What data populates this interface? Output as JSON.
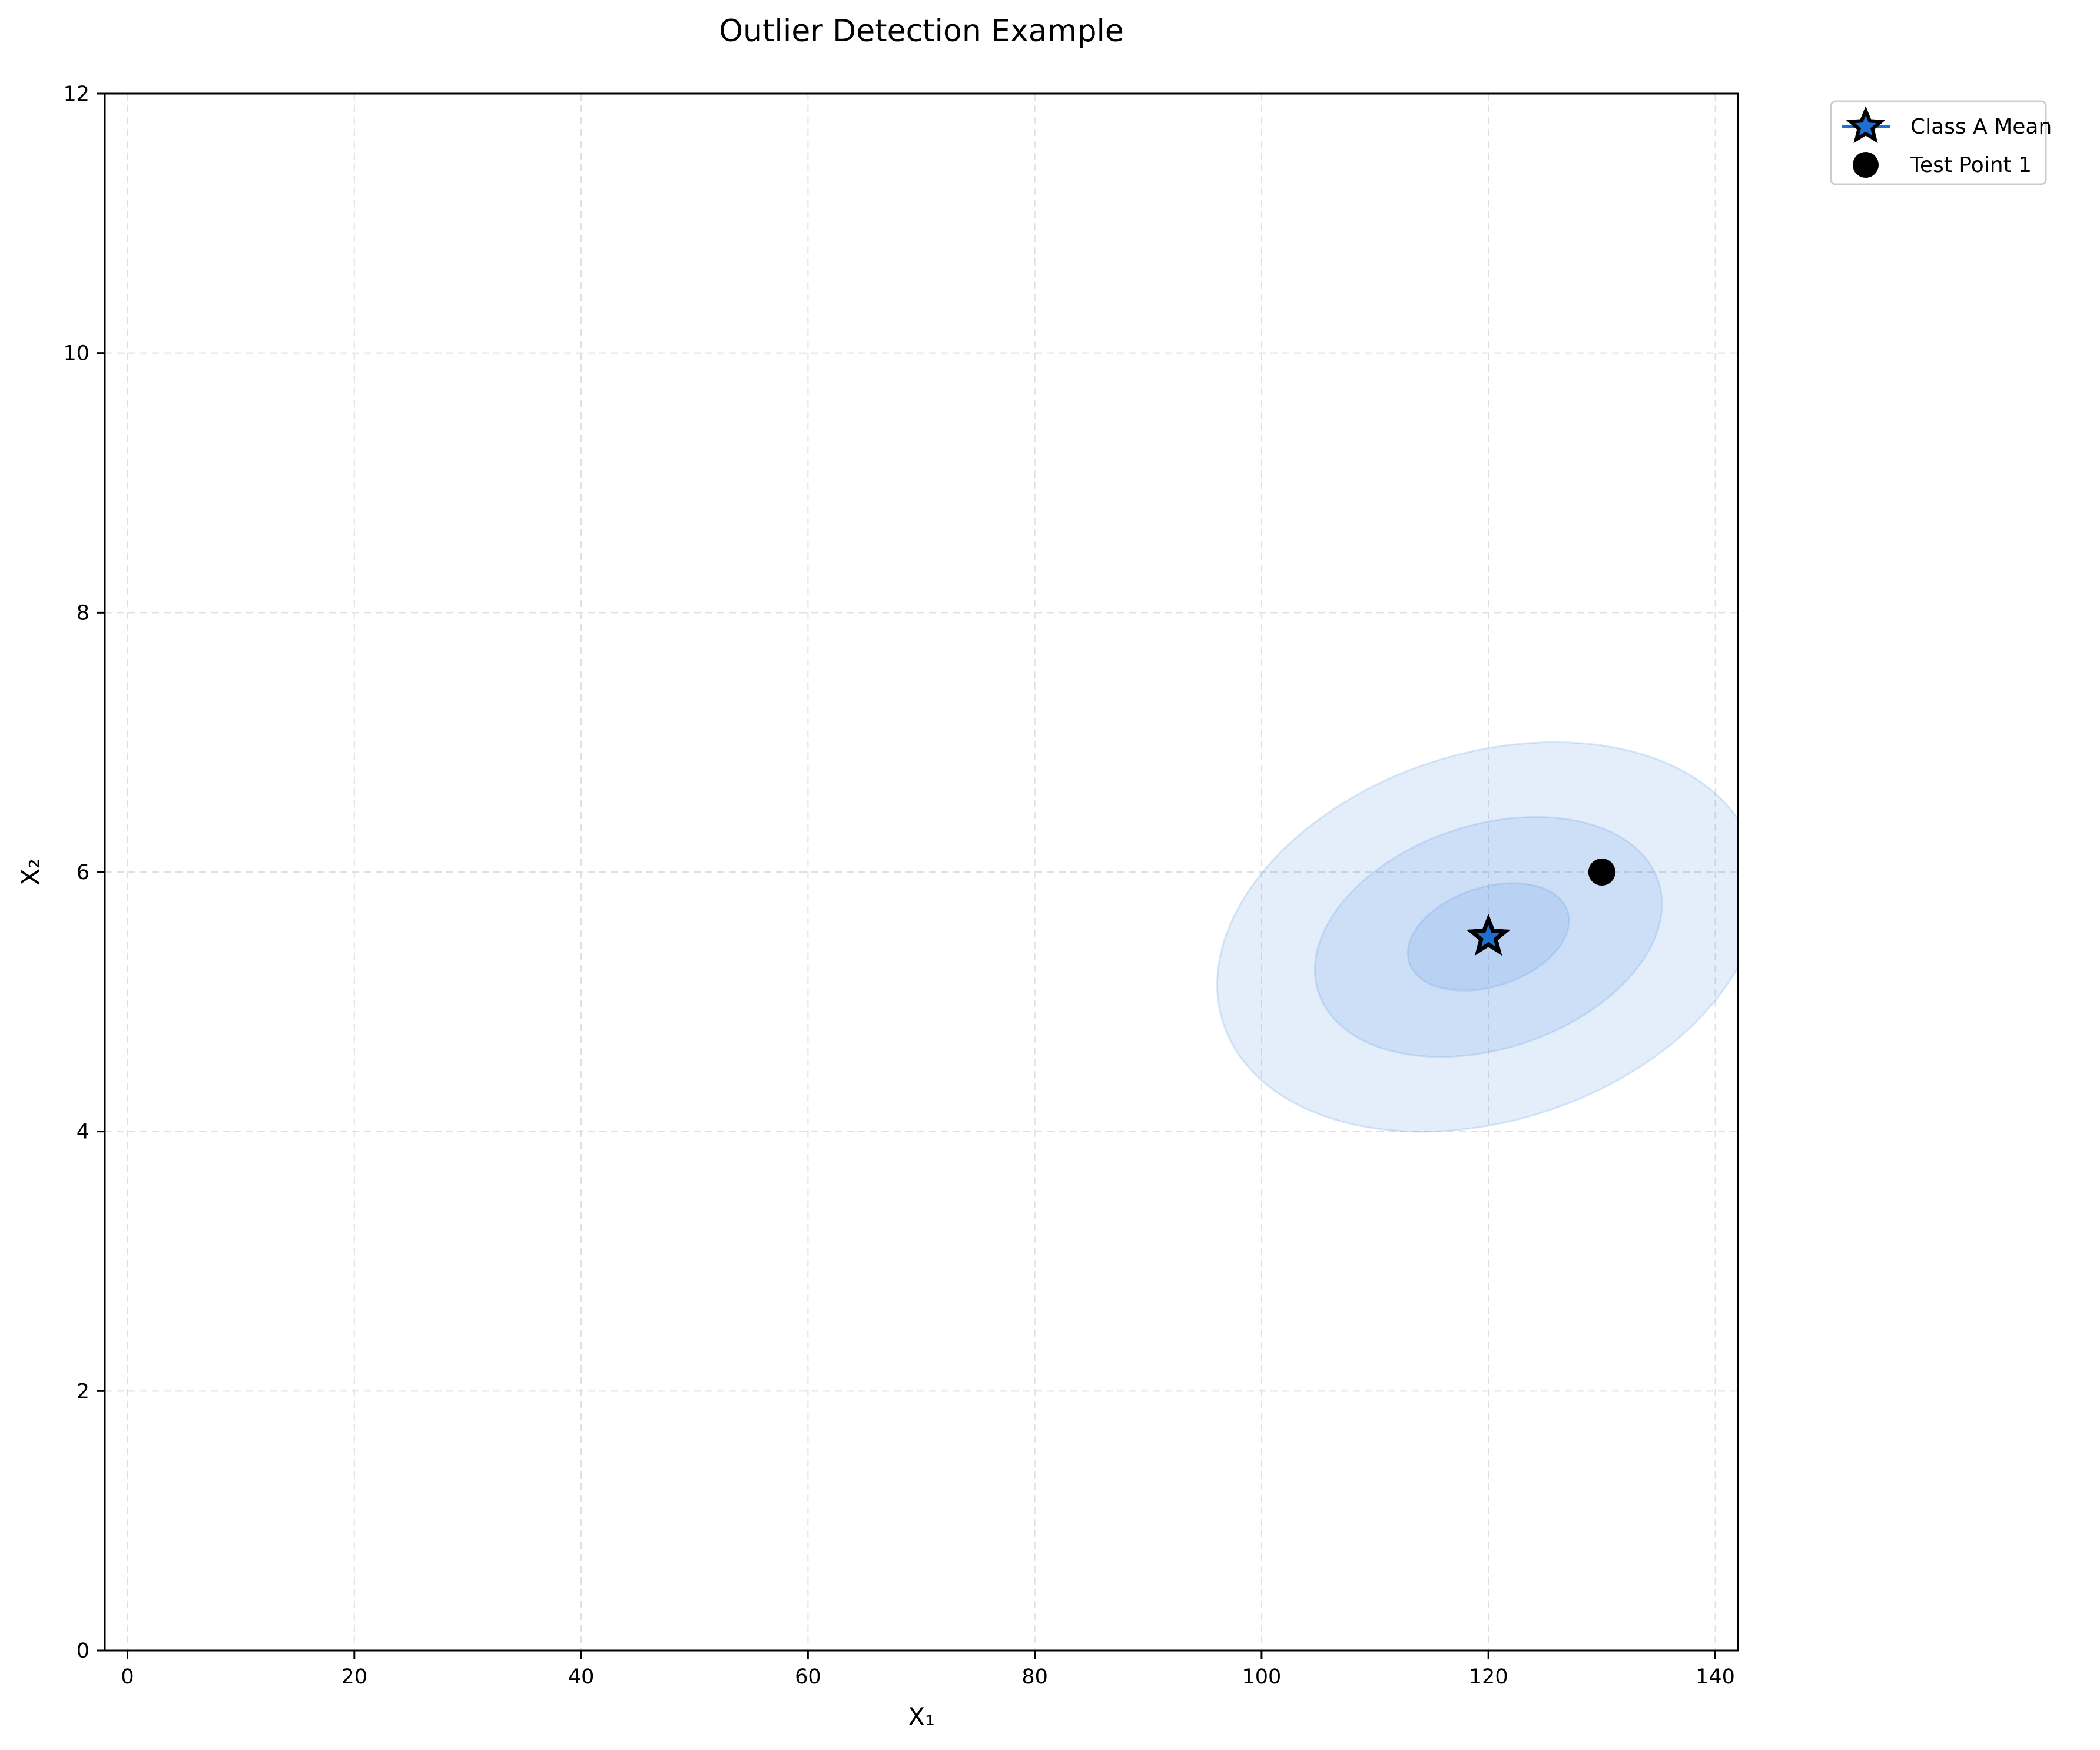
{
  "chart_data": {
    "type": "scatter",
    "title": "Outlier Detection Example",
    "xlabel": "X₁",
    "ylabel": "X₂",
    "xlim": [
      -2,
      142
    ],
    "ylim": [
      0,
      12
    ],
    "x_ticks": [
      0,
      20,
      40,
      60,
      80,
      100,
      120,
      140
    ],
    "y_ticks": [
      0,
      2,
      4,
      6,
      8,
      10,
      12
    ],
    "grid": true,
    "legend_position": "outside top-right",
    "series": [
      {
        "name": "Class A Mean",
        "marker": "star",
        "color": "#1f6fd1",
        "edge_color": "#000000",
        "points": [
          {
            "x": 120,
            "y": 5.5
          }
        ]
      },
      {
        "name": "Test Point 1",
        "marker": "circle",
        "color": "#000000",
        "points": [
          {
            "x": 130,
            "y": 6.0
          }
        ]
      }
    ],
    "confidence_ellipses": {
      "center": {
        "x": 120,
        "y": 5.5
      },
      "color": "#4a90e2",
      "fill_opacity": 0.15,
      "levels": [
        {
          "x_half_extent": 3.5,
          "y_half_extent": 0.8
        },
        {
          "x_half_extent": 8.5,
          "y_half_extent": 1.6
        },
        {
          "x_half_extent": 14.5,
          "y_half_extent": 2.4
        }
      ]
    }
  }
}
